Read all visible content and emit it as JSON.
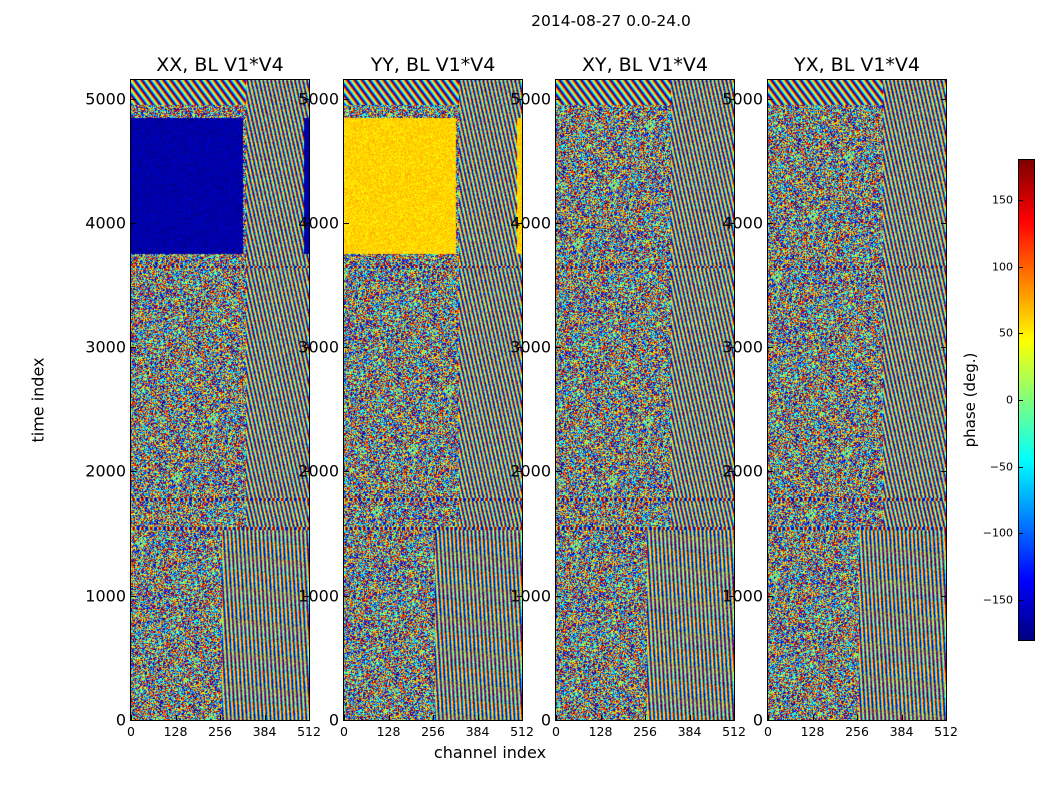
{
  "chart_data": {
    "type": "heatmap",
    "suptitle": "2014-08-27 0.0-24.0",
    "xlabel": "channel index",
    "ylabel": "time index",
    "xlim": [
      0,
      512
    ],
    "ylim": [
      0,
      5150
    ],
    "xticks": [
      "0",
      "128",
      "256",
      "384",
      "512"
    ],
    "yticks": [
      "0",
      "1000",
      "2000",
      "3000",
      "4000",
      "5000"
    ],
    "panels": [
      {
        "title": "XX, BL V1*V4",
        "block_phase": -165
      },
      {
        "title": "YY, BL V1*V4",
        "block_phase": 60
      },
      {
        "title": "XY, BL V1*V4",
        "block_phase": null
      },
      {
        "title": "YX, BL V1*V4",
        "block_phase": null
      }
    ],
    "colorbar": {
      "label": "phase (deg.)",
      "range": [
        -180,
        180
      ],
      "ticks": [
        "150",
        "100",
        "50",
        "0",
        "−50",
        "−100",
        "−150"
      ],
      "tick_values": [
        150,
        100,
        50,
        0,
        -50,
        -100,
        -150
      ],
      "colormap": "jet"
    }
  }
}
